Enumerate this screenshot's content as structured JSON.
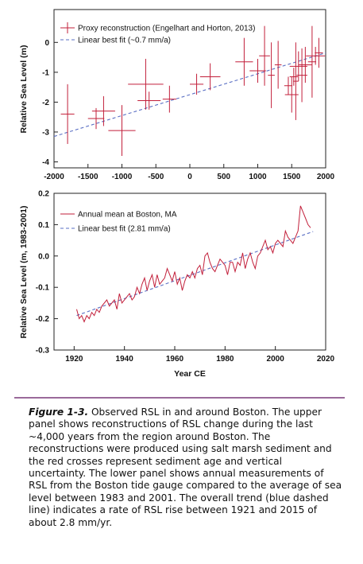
{
  "figure": {
    "label": "Figure 1-3.",
    "caption": " Observed RSL in and around Boston. The upper panel shows reconstructions of RSL change during the last ~4,000 years from the region around Boston. The reconstructions were produced using salt marsh sediment and the red crosses represent sediment age and vertical uncertainty. The lower panel shows annual measurements of RSL from the Boston tide gauge compared to the average of sea level between 1983 and 2001. The overall trend (blue dashed line) indicates a rate of RSL rise between 1921 and 2015 of about 2.8 mm/yr."
  },
  "colors": {
    "data": "#c21f3a",
    "fit": "#5a6fc4",
    "axis": "#222222",
    "divider": "#9a6a9a"
  },
  "chart_data": [
    {
      "type": "scatter",
      "ylabel": "Relative Sea Level (m)",
      "xlim": [
        -2000,
        2000
      ],
      "ylim": [
        -4.2,
        1.1
      ],
      "xticks": [
        -2000,
        -1500,
        -1000,
        -500,
        0,
        500,
        1000,
        1500,
        2000
      ],
      "yticks": [
        0,
        -1,
        -2,
        -3,
        -4
      ],
      "legend": [
        "Proxy reconstruction (Engelhart and Horton, 2013)",
        "Linear best fit (~0.7 mm/a)"
      ],
      "legend_position": "top-left",
      "fit_line": {
        "x": [
          -2000,
          2000
        ],
        "y": [
          -3.15,
          -0.35
        ]
      },
      "points": [
        {
          "x": -1800,
          "y": -2.4,
          "xerr": 100,
          "yerr": 1.0
        },
        {
          "x": -1380,
          "y": -2.55,
          "xerr": 120,
          "yerr": 0.35
        },
        {
          "x": -1270,
          "y": -2.3,
          "xerr": 170,
          "yerr": 0.5
        },
        {
          "x": -1000,
          "y": -2.95,
          "xerr": 200,
          "yerr": 0.85
        },
        {
          "x": -650,
          "y": -1.4,
          "xerr": 260,
          "yerr": 0.85
        },
        {
          "x": -600,
          "y": -1.95,
          "xerr": 170,
          "yerr": 0.3
        },
        {
          "x": -300,
          "y": -1.9,
          "xerr": 100,
          "yerr": 0.45
        },
        {
          "x": 100,
          "y": -1.4,
          "xerr": 100,
          "yerr": 0.35
        },
        {
          "x": 300,
          "y": -1.15,
          "xerr": 150,
          "yerr": 0.45
        },
        {
          "x": 800,
          "y": -0.65,
          "xerr": 130,
          "yerr": 0.8
        },
        {
          "x": 1000,
          "y": -0.95,
          "xerr": 120,
          "yerr": 0.4
        },
        {
          "x": 1100,
          "y": -0.45,
          "xerr": 80,
          "yerr": 1.0
        },
        {
          "x": 1200,
          "y": -1.1,
          "xerr": 50,
          "yerr": 1.1
        },
        {
          "x": 1300,
          "y": -0.75,
          "xerr": 50,
          "yerr": 0.8
        },
        {
          "x": 1450,
          "y": -1.45,
          "xerr": 60,
          "yerr": 0.3
        },
        {
          "x": 1500,
          "y": -1.75,
          "xerr": 100,
          "yerr": 0.6
        },
        {
          "x": 1530,
          "y": -1.15,
          "xerr": 60,
          "yerr": 0.3
        },
        {
          "x": 1560,
          "y": -1.3,
          "xerr": 40,
          "yerr": 1.3
        },
        {
          "x": 1600,
          "y": -0.8,
          "xerr": 130,
          "yerr": 0.5
        },
        {
          "x": 1650,
          "y": -1.1,
          "xerr": 80,
          "yerr": 0.9
        },
        {
          "x": 1700,
          "y": -0.75,
          "xerr": 100,
          "yerr": 0.6
        },
        {
          "x": 1800,
          "y": -0.65,
          "xerr": 60,
          "yerr": 1.2
        },
        {
          "x": 1850,
          "y": -0.45,
          "xerr": 140,
          "yerr": 0.3
        },
        {
          "x": 1900,
          "y": -0.35,
          "xerr": 60,
          "yerr": 0.5
        }
      ]
    },
    {
      "type": "line",
      "xlabel": "Year CE",
      "ylabel": "Relative Sea Level (m, 1983-2001)",
      "xlim": [
        1912,
        2020
      ],
      "ylim": [
        -0.3,
        0.2
      ],
      "xticks": [
        1920,
        1940,
        1960,
        1980,
        2000,
        2020
      ],
      "yticks": [
        0.2,
        0.1,
        0.0,
        -0.1,
        -0.2,
        -0.3
      ],
      "ytick_labels": [
        "0.2",
        "0.1",
        "0.0",
        "-0.1",
        "-0.2",
        "-0.3"
      ],
      "legend": [
        "Annual mean at Boston, MA",
        "Linear best fit (2.81 mm/a)"
      ],
      "legend_position": "top-left",
      "fit_line": {
        "x": [
          1921,
          2015
        ],
        "y": [
          -0.19,
          0.078
        ]
      },
      "series": {
        "x": [
          1921,
          1922,
          1923,
          1924,
          1925,
          1926,
          1927,
          1928,
          1929,
          1930,
          1931,
          1932,
          1933,
          1934,
          1935,
          1936,
          1937,
          1938,
          1939,
          1940,
          1941,
          1942,
          1943,
          1944,
          1945,
          1946,
          1947,
          1948,
          1949,
          1950,
          1951,
          1952,
          1953,
          1954,
          1955,
          1956,
          1957,
          1958,
          1959,
          1960,
          1961,
          1962,
          1963,
          1964,
          1965,
          1966,
          1967,
          1968,
          1969,
          1970,
          1971,
          1972,
          1973,
          1974,
          1975,
          1976,
          1977,
          1978,
          1979,
          1980,
          1981,
          1982,
          1983,
          1984,
          1985,
          1986,
          1987,
          1988,
          1989,
          1990,
          1991,
          1992,
          1993,
          1994,
          1995,
          1996,
          1997,
          1998,
          1999,
          2000,
          2001,
          2002,
          2003,
          2004,
          2005,
          2006,
          2007,
          2008,
          2009,
          2010,
          2011,
          2012,
          2013,
          2014
        ],
        "y": [
          -0.17,
          -0.2,
          -0.19,
          -0.21,
          -0.19,
          -0.2,
          -0.18,
          -0.19,
          -0.17,
          -0.18,
          -0.16,
          -0.15,
          -0.14,
          -0.16,
          -0.15,
          -0.14,
          -0.17,
          -0.12,
          -0.15,
          -0.14,
          -0.13,
          -0.12,
          -0.14,
          -0.13,
          -0.1,
          -0.12,
          -0.09,
          -0.07,
          -0.11,
          -0.08,
          -0.06,
          -0.1,
          -0.06,
          -0.09,
          -0.08,
          -0.07,
          -0.04,
          -0.06,
          -0.08,
          -0.05,
          -0.09,
          -0.07,
          -0.11,
          -0.08,
          -0.06,
          -0.07,
          -0.05,
          -0.07,
          -0.04,
          -0.03,
          -0.06,
          0.0,
          0.01,
          -0.02,
          -0.04,
          -0.05,
          -0.03,
          -0.01,
          -0.02,
          -0.03,
          -0.06,
          -0.02,
          -0.02,
          -0.05,
          -0.02,
          -0.03,
          0.01,
          -0.04,
          -0.01,
          0.01,
          -0.02,
          -0.04,
          0.0,
          0.01,
          0.03,
          0.05,
          0.02,
          0.03,
          0.01,
          0.04,
          0.05,
          0.04,
          0.03,
          0.08,
          0.06,
          0.05,
          0.04,
          0.06,
          0.08,
          0.16,
          0.14,
          0.12,
          0.1,
          0.09
        ]
      }
    }
  ]
}
